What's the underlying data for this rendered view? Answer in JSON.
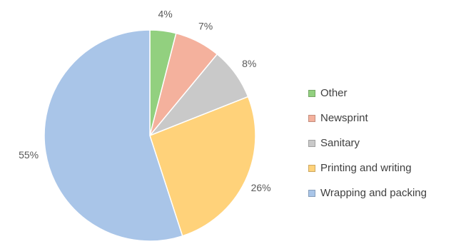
{
  "chart_data": {
    "type": "pie",
    "title": "",
    "slices": [
      {
        "label": "Other",
        "value": 4,
        "value_label": "4%",
        "color": "#92D07F"
      },
      {
        "label": "Newsprint",
        "value": 7,
        "value_label": "7%",
        "color": "#F4B19D"
      },
      {
        "label": "Sanitary",
        "value": 8,
        "value_label": "8%",
        "color": "#C9C9C9"
      },
      {
        "label": "Printing and writing",
        "value": 26,
        "value_label": "26%",
        "color": "#FFD27A"
      },
      {
        "label": "Wrapping and packing",
        "value": 55,
        "value_label": "55%",
        "color": "#A9C5E8"
      }
    ],
    "legend_position": "right",
    "start_angle": "top, clockwise"
  }
}
